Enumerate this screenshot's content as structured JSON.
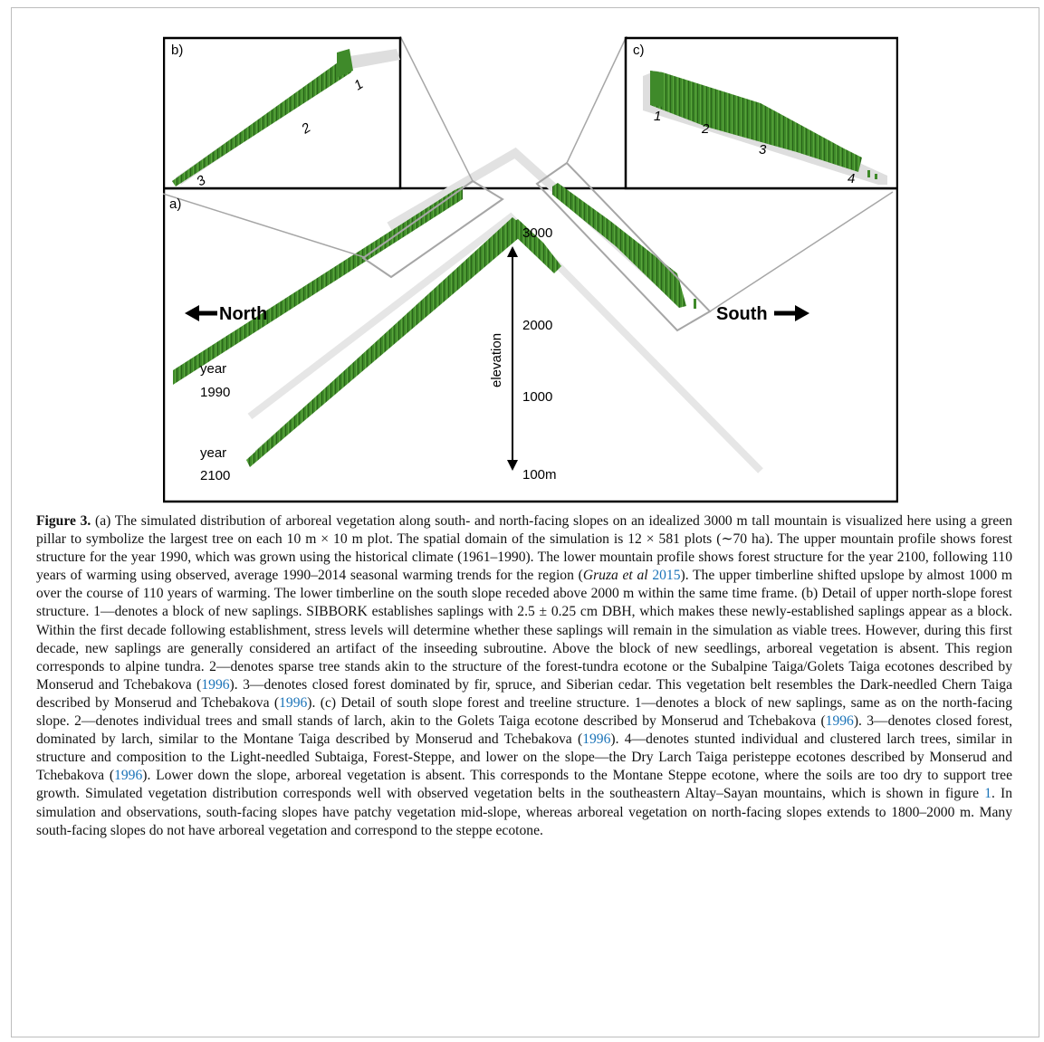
{
  "figure": {
    "panel_labels": {
      "a": "a)",
      "b": "b)",
      "c": "c)"
    },
    "direction_north": "North",
    "direction_south": "South",
    "year_upper_label": "year",
    "year_upper_value": "1990",
    "year_lower_label": "year",
    "year_lower_value": "2100",
    "elevation_axis_label": "elevation",
    "elevation_ticks": [
      "3000",
      "2000",
      "1000",
      "100m"
    ],
    "detail_b_markers": [
      "1",
      "2",
      "3"
    ],
    "detail_c_markers": [
      "1",
      "2",
      "3",
      "4"
    ],
    "colors": {
      "forest": "#3f8a2a",
      "forest_dark": "#2c6a1c",
      "ridge": "#e2e2e2",
      "frame": "#000000",
      "callout": "#a6a6a6"
    }
  },
  "caption": {
    "label": "Figure 3.",
    "text_1": " (a) The simulated distribution of arboreal vegetation along south- and north-facing slopes on an idealized 3000 m tall mountain is visualized here using a green pillar to symbolize the largest tree on each 10 m × 10 m plot. The spatial domain of the simulation is 12 × 581 plots (∼70 ha). The upper mountain profile shows forest structure for the year 1990, which was grown using the historical climate (1961–1990). The lower mountain profile shows forest structure for the year 2100, following 110 years of warming using observed, average 1990–2014 seasonal warming trends for the region (",
    "cite_1_authors": "Gruza et al",
    "cite_1_year": "2015",
    "text_2": "). The upper timberline shifted upslope by almost 1000 m over the course of 110 years of warming. The lower timberline on the south slope receded above 2000 m within the same time frame. (b) Detail of upper north-slope forest structure. 1—denotes a block of new saplings. SIBBORK establishes saplings with 2.5 ± 0.25 cm DBH, which makes these newly-established saplings appear as a block. Within the first decade following establishment, stress levels will determine whether these saplings will remain in the simulation as viable trees. However, during this first decade, new saplings are generally considered an artifact of the inseeding subroutine. Above the block of new seedlings, arboreal vegetation is absent. This region corresponds to alpine tundra. 2—denotes sparse tree stands akin to the structure of the forest-tundra ecotone or the Subalpine Taiga/Golets Taiga ecotones described by Monserud and Tchebakova (",
    "cite_2_year": "1996",
    "text_3": "). 3—denotes closed forest dominated by fir, spruce, and Siberian cedar. This vegetation belt resembles the Dark-needled Chern Taiga described by Monserud and Tchebakova (",
    "cite_3_year": "1996",
    "text_4": "). (c) Detail of south slope forest and treeline structure. 1—denotes a block of new saplings, same as on the north-facing slope. 2—denotes individual trees and small stands of larch, akin to the Golets Taiga ecotone described by Monserud and Tchebakova (",
    "cite_4_year": "1996",
    "text_5": "). 3—denotes closed forest, dominated by larch, similar to the Montane Taiga described by Monserud and Tchebakova (",
    "cite_5_year": "1996",
    "text_6": "). 4—denotes stunted individual and clustered larch trees, similar in structure and composition to the Light-needled Subtaiga, Forest-Steppe, and lower on the slope—the Dry Larch Taiga peristeppe ecotones described by Monserud and Tchebakova (",
    "cite_6_year": "1996",
    "text_7": "). Lower down the slope, arboreal vegetation is absent. This corresponds to the Montane Steppe ecotone, where the soils are too dry to support tree growth. Simulated vegetation distribution corresponds well with observed vegetation belts in the southeastern Altay–Sayan mountains, which is shown in figure ",
    "cite_fig": "1",
    "text_8": ". In simulation and observations, south-facing slopes have patchy vegetation mid-slope, whereas arboreal vegetation on north-facing slopes extends to 1800–2000 m. Many south-facing slopes do not have arboreal vegetation and correspond to the steppe ecotone."
  }
}
